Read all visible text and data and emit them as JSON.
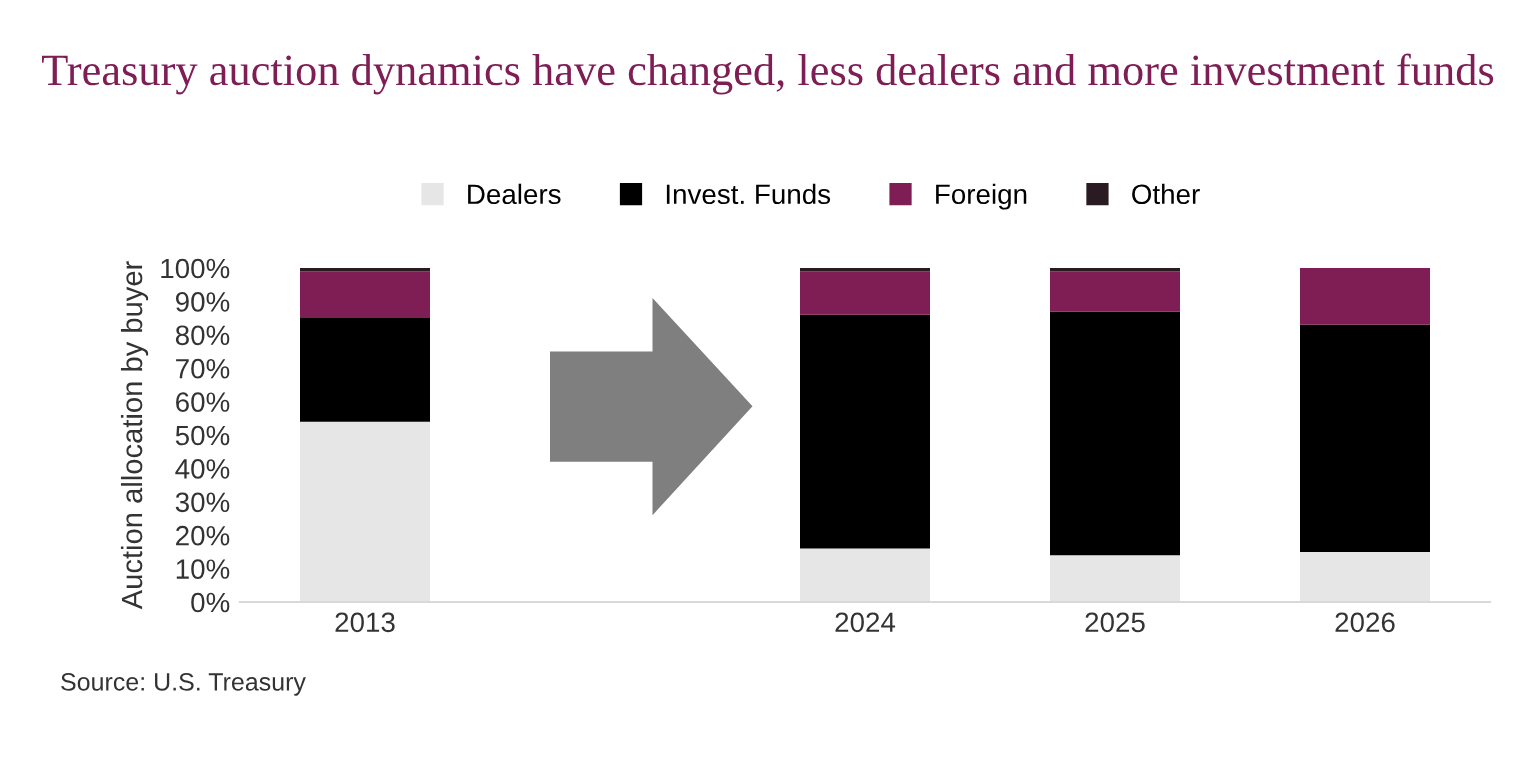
{
  "chart_data": {
    "type": "bar",
    "stacked": true,
    "title": "Treasury auction dynamics have changed, less dealers and more investment funds",
    "ylabel": "Auction allocation by buyer",
    "categories": [
      "2013",
      null,
      "2024",
      "2025",
      "2026"
    ],
    "series": [
      {
        "name": "Dealers",
        "color": "#e6e6e6",
        "values": [
          54,
          null,
          16,
          14,
          15
        ]
      },
      {
        "name": "Invest. Funds",
        "color": "#000000",
        "values": [
          31,
          null,
          70,
          73,
          68
        ]
      },
      {
        "name": "Foreign",
        "color": "#7f1d55",
        "values": [
          14,
          null,
          13,
          12,
          17
        ]
      },
      {
        "name": "Other",
        "color": "#2a1a22",
        "values": [
          1,
          null,
          1,
          1,
          0
        ]
      }
    ],
    "ylim": [
      0,
      100
    ],
    "yticks": [
      {
        "value": 0,
        "label": "0%"
      },
      {
        "value": 10,
        "label": "10%"
      },
      {
        "value": 20,
        "label": "20%"
      },
      {
        "value": 30,
        "label": "30%"
      },
      {
        "value": 40,
        "label": "40%"
      },
      {
        "value": 50,
        "label": "50%"
      },
      {
        "value": 60,
        "label": "60%"
      },
      {
        "value": 70,
        "label": "70%"
      },
      {
        "value": 80,
        "label": "80%"
      },
      {
        "value": 90,
        "label": "90%"
      },
      {
        "value": 100,
        "label": "100%"
      }
    ],
    "grid": false,
    "legend": "top",
    "annotations": [
      "Source: U.S. Treasury"
    ]
  }
}
